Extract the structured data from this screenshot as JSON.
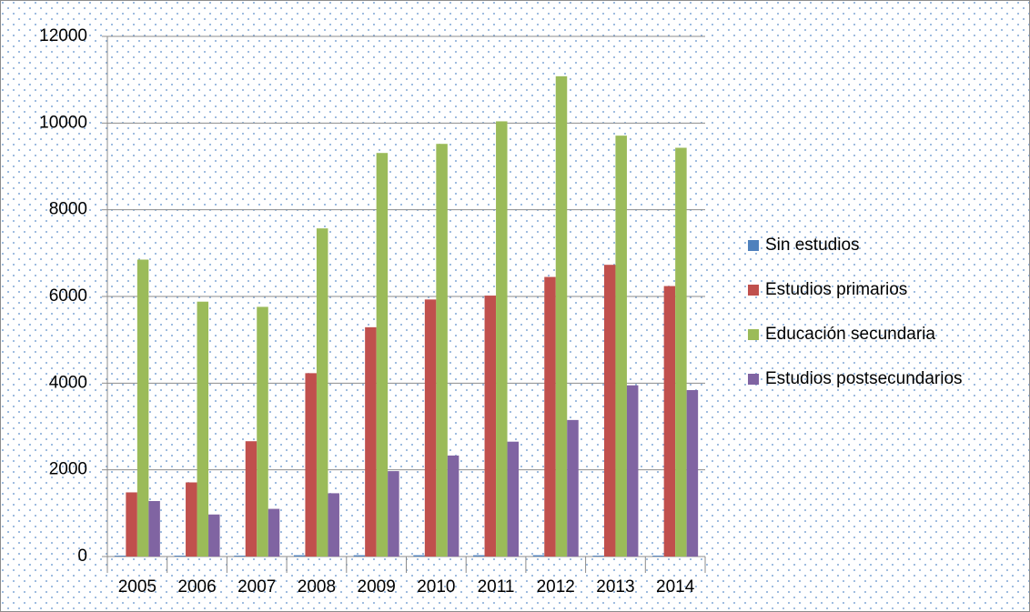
{
  "chart_data": {
    "type": "bar",
    "categories": [
      "2005",
      "2006",
      "2007",
      "2008",
      "2009",
      "2010",
      "2011",
      "2012",
      "2013",
      "2014"
    ],
    "series": [
      {
        "name": "Sin estudios",
        "color": "#4f81bd",
        "values": [
          20,
          20,
          20,
          30,
          30,
          30,
          30,
          30,
          20,
          20
        ]
      },
      {
        "name": "Estudios primarios",
        "color": "#c0504d",
        "values": [
          1480,
          1710,
          2660,
          4230,
          5290,
          5930,
          6020,
          6450,
          6730,
          6240
        ]
      },
      {
        "name": "Educación secundaria",
        "color": "#9bbb59",
        "values": [
          6850,
          5880,
          5760,
          7570,
          9310,
          9520,
          10040,
          11080,
          9710,
          9430
        ]
      },
      {
        "name": "Estudios postsecundarios",
        "color": "#8064a2",
        "values": [
          1280,
          970,
          1100,
          1460,
          1970,
          2330,
          2650,
          3150,
          3950,
          3840
        ]
      }
    ],
    "ylim": [
      0,
      12000
    ],
    "yticks": [
      0,
      2000,
      4000,
      6000,
      8000,
      10000,
      12000
    ],
    "grid": true,
    "legend": "right"
  }
}
